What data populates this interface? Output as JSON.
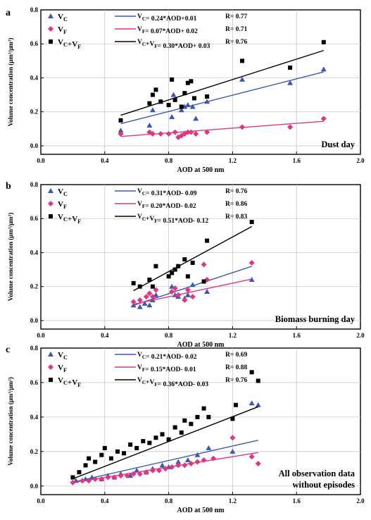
{
  "chart_data": [
    {
      "type": "scatter",
      "panel_label": "a",
      "annotation": "Dust day",
      "xlabel": "AOD at 500 nm",
      "ylabel": "Volume concentration (μm³/μm²)",
      "xlim": [
        0.0,
        2.0
      ],
      "ylim": [
        -0.05,
        0.8
      ],
      "xticks": [
        "0.0",
        "0.4",
        "0.8",
        "1.2",
        "1.6",
        "2.0"
      ],
      "yticks": [
        "0.0",
        "0.2",
        "0.4",
        "0.6",
        "0.8"
      ],
      "grid": true,
      "legend": {
        "position": "top-left"
      },
      "series": [
        {
          "name": "VC",
          "color": "#3a57b7",
          "marker": "triangle",
          "fit": {
            "label": "VC= 0.24*AOD+0.01",
            "R": "R= 0.77",
            "slope": 0.24,
            "intercept": 0.01
          },
          "x": [
            0.5,
            0.68,
            0.7,
            0.75,
            0.82,
            0.83,
            0.88,
            0.9,
            0.92,
            0.95,
            0.97,
            1.04,
            1.26,
            1.56,
            1.77
          ],
          "y": [
            0.09,
            0.12,
            0.21,
            0.26,
            0.17,
            0.3,
            0.21,
            0.23,
            0.24,
            0.23,
            0.16,
            0.26,
            0.39,
            0.37,
            0.45
          ]
        },
        {
          "name": "VF",
          "color": "#e0357f",
          "marker": "diamond",
          "fit": {
            "label": "VF= 0.07*AOD+ 0.02",
            "R": "R= 0.71",
            "slope": 0.07,
            "intercept": 0.02
          },
          "x": [
            0.5,
            0.68,
            0.7,
            0.75,
            0.8,
            0.84,
            0.86,
            0.88,
            0.9,
            0.92,
            0.94,
            0.97,
            1.04,
            1.26,
            1.56,
            1.77
          ],
          "y": [
            0.07,
            0.08,
            0.07,
            0.07,
            0.07,
            0.08,
            0.05,
            0.06,
            0.07,
            0.08,
            0.08,
            0.07,
            0.08,
            0.11,
            0.11,
            0.16
          ]
        },
        {
          "name": "VC+VF",
          "color": "#000000",
          "marker": "square",
          "fit": {
            "label": "VC+VF= 0.30*AOD+ 0.03",
            "R": "R= 0.76",
            "slope": 0.3,
            "intercept": 0.03
          },
          "x": [
            0.5,
            0.68,
            0.7,
            0.72,
            0.75,
            0.8,
            0.82,
            0.84,
            0.88,
            0.9,
            0.92,
            0.94,
            0.96,
            1.04,
            1.26,
            1.56,
            1.77
          ],
          "y": [
            0.15,
            0.25,
            0.3,
            0.33,
            0.26,
            0.24,
            0.39,
            0.27,
            0.23,
            0.31,
            0.37,
            0.38,
            0.28,
            0.29,
            0.5,
            0.46,
            0.61
          ]
        }
      ]
    },
    {
      "type": "scatter",
      "panel_label": "b",
      "annotation": "Biomass burning day",
      "xlabel": "AOD at 500 nm",
      "ylabel": "Volume concentration (μm³/μm²)",
      "xlim": [
        0.0,
        2.0
      ],
      "ylim": [
        -0.05,
        0.8
      ],
      "xticks": [
        "0.0",
        "0.4",
        "0.8",
        "1.2",
        "1.6",
        "2.0"
      ],
      "yticks": [
        "0.0",
        "0.2",
        "0.4",
        "0.6",
        "0.8"
      ],
      "grid": true,
      "legend": {
        "position": "top-left"
      },
      "series": [
        {
          "name": "VC",
          "color": "#3a57b7",
          "marker": "triangle",
          "fit": {
            "label": "VC= 0.31*AOD- 0.09",
            "R": "R= 0.76",
            "slope": 0.31,
            "intercept": -0.09
          },
          "x": [
            0.58,
            0.62,
            0.65,
            0.68,
            0.7,
            0.72,
            0.82,
            0.84,
            0.86,
            0.9,
            0.92,
            0.95,
            1.04,
            1.32
          ],
          "y": [
            0.09,
            0.08,
            0.1,
            0.09,
            0.12,
            0.15,
            0.2,
            0.15,
            0.14,
            0.13,
            0.15,
            0.21,
            0.17,
            0.24
          ]
        },
        {
          "name": "VF",
          "color": "#e0357f",
          "marker": "diamond",
          "fit": {
            "label": "VF= 0.20*AOD- 0.02",
            "R": "R= 0.86",
            "slope": 0.2,
            "intercept": -0.02
          },
          "x": [
            0.58,
            0.62,
            0.66,
            0.68,
            0.7,
            0.72,
            0.82,
            0.84,
            0.86,
            0.9,
            0.92,
            0.95,
            1.02,
            1.04,
            1.32
          ],
          "y": [
            0.11,
            0.12,
            0.14,
            0.16,
            0.14,
            0.18,
            0.17,
            0.19,
            0.15,
            0.12,
            0.18,
            0.14,
            0.33,
            0.24,
            0.34
          ]
        },
        {
          "name": "VC+VF",
          "color": "#000000",
          "marker": "square",
          "fit": {
            "label": "VC+VF= 0.51*AOD- 0.12",
            "R": "R= 0.83",
            "slope": 0.51,
            "intercept": -0.12
          },
          "x": [
            0.58,
            0.62,
            0.68,
            0.7,
            0.72,
            0.8,
            0.82,
            0.84,
            0.86,
            0.9,
            0.92,
            0.95,
            1.02,
            1.04,
            1.32
          ],
          "y": [
            0.22,
            0.2,
            0.24,
            0.2,
            0.32,
            0.26,
            0.28,
            0.3,
            0.32,
            0.36,
            0.26,
            0.34,
            0.23,
            0.47,
            0.58
          ]
        }
      ]
    },
    {
      "type": "scatter",
      "panel_label": "c",
      "annotation": "All observation data without episodes",
      "annotation_lines": [
        "All observation data",
        "without episodes"
      ],
      "xlabel": "AOD at 500 nm",
      "ylabel": "Volume concentration (μm³/μm²)",
      "xlim": [
        0.0,
        2.0
      ],
      "ylim": [
        -0.05,
        0.8
      ],
      "xticks": [
        "0.0",
        "0.4",
        "0.8",
        "1.2",
        "1.6",
        "2.0"
      ],
      "yticks": [
        "0.0",
        "0.2",
        "0.4",
        "0.6",
        "0.8"
      ],
      "grid": true,
      "legend": {
        "position": "top-left"
      },
      "series": [
        {
          "name": "VC",
          "color": "#3a57b7",
          "marker": "triangle",
          "fit": {
            "label": "VC= 0.21*AOD- 0.02",
            "R": "R= 0.69",
            "slope": 0.21,
            "intercept": -0.02
          },
          "x": [
            0.22,
            0.28,
            0.32,
            0.38,
            0.42,
            0.46,
            0.5,
            0.56,
            0.6,
            0.66,
            0.7,
            0.76,
            0.8,
            0.86,
            0.92,
            0.98,
            1.05,
            1.2,
            1.32,
            1.36
          ],
          "y": [
            0.03,
            0.04,
            0.05,
            0.04,
            0.06,
            0.05,
            0.07,
            0.06,
            0.09,
            0.08,
            0.1,
            0.12,
            0.11,
            0.14,
            0.15,
            0.18,
            0.22,
            0.2,
            0.48,
            0.47
          ]
        },
        {
          "name": "VF",
          "color": "#e0357f",
          "marker": "diamond",
          "fit": {
            "label": "VF= 0.15*AOD- 0.01",
            "R": "R= 0.88",
            "slope": 0.15,
            "intercept": -0.01
          },
          "x": [
            0.2,
            0.26,
            0.3,
            0.34,
            0.38,
            0.42,
            0.46,
            0.5,
            0.54,
            0.58,
            0.62,
            0.66,
            0.7,
            0.74,
            0.78,
            0.82,
            0.86,
            0.9,
            0.94,
            0.98,
            1.02,
            1.08,
            1.2,
            1.32,
            1.36
          ],
          "y": [
            0.02,
            0.03,
            0.03,
            0.04,
            0.04,
            0.05,
            0.05,
            0.06,
            0.06,
            0.07,
            0.07,
            0.08,
            0.09,
            0.09,
            0.1,
            0.11,
            0.12,
            0.12,
            0.13,
            0.14,
            0.15,
            0.16,
            0.28,
            0.17,
            0.13
          ]
        },
        {
          "name": "VC+VF",
          "color": "#000000",
          "marker": "square",
          "fit": {
            "label": "VC+VF= 0.36*AOD- 0.03",
            "R": "R= 0.76",
            "slope": 0.36,
            "intercept": -0.03
          },
          "x": [
            0.2,
            0.24,
            0.28,
            0.3,
            0.34,
            0.38,
            0.4,
            0.44,
            0.48,
            0.52,
            0.56,
            0.6,
            0.64,
            0.68,
            0.72,
            0.76,
            0.8,
            0.84,
            0.88,
            0.9,
            0.94,
            0.98,
            1.02,
            1.05,
            1.2,
            1.22,
            1.32,
            1.36
          ],
          "y": [
            0.05,
            0.08,
            0.12,
            0.16,
            0.14,
            0.18,
            0.22,
            0.16,
            0.2,
            0.19,
            0.24,
            0.22,
            0.26,
            0.25,
            0.28,
            0.3,
            0.27,
            0.34,
            0.31,
            0.38,
            0.36,
            0.4,
            0.45,
            0.4,
            0.39,
            0.47,
            0.66,
            0.61
          ]
        }
      ]
    }
  ]
}
